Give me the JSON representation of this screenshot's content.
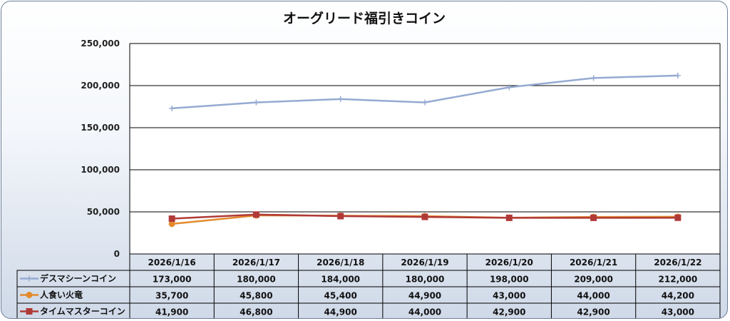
{
  "chart_data": {
    "type": "line",
    "title": "オーグリード福引きコイン",
    "categories": [
      "2026/1/16",
      "2026/1/17",
      "2026/1/18",
      "2026/1/19",
      "2026/1/20",
      "2026/1/21",
      "2026/1/22"
    ],
    "ylim": [
      0,
      250000
    ],
    "yticks": [
      "0",
      "50,000",
      "100,000",
      "150,000",
      "200,000",
      "250,000"
    ],
    "grid": true,
    "legend": "data-table",
    "series": [
      {
        "name": "デスマシーンコイン",
        "color": "#95aad2",
        "marker": "plus",
        "values": [
          173000,
          180000,
          184000,
          180000,
          198000,
          209000,
          212000
        ],
        "labels": [
          "173,000",
          "180,000",
          "184,000",
          "180,000",
          "198,000",
          "209,000",
          "212,000"
        ]
      },
      {
        "name": "人食い火竜",
        "color": "#e38a2e",
        "marker": "circle",
        "values": [
          35700,
          45800,
          45400,
          44900,
          43000,
          44000,
          44200
        ],
        "labels": [
          "35,700",
          "45,800",
          "45,400",
          "44,900",
          "43,000",
          "44,000",
          "44,200"
        ]
      },
      {
        "name": "タイムマスターコイン",
        "color": "#b03a37",
        "marker": "square",
        "values": [
          41900,
          46800,
          44900,
          44000,
          42900,
          42900,
          43000
        ],
        "labels": [
          "41,900",
          "46,800",
          "44,900",
          "44,000",
          "42,900",
          "42,900",
          "43,000"
        ]
      }
    ]
  }
}
